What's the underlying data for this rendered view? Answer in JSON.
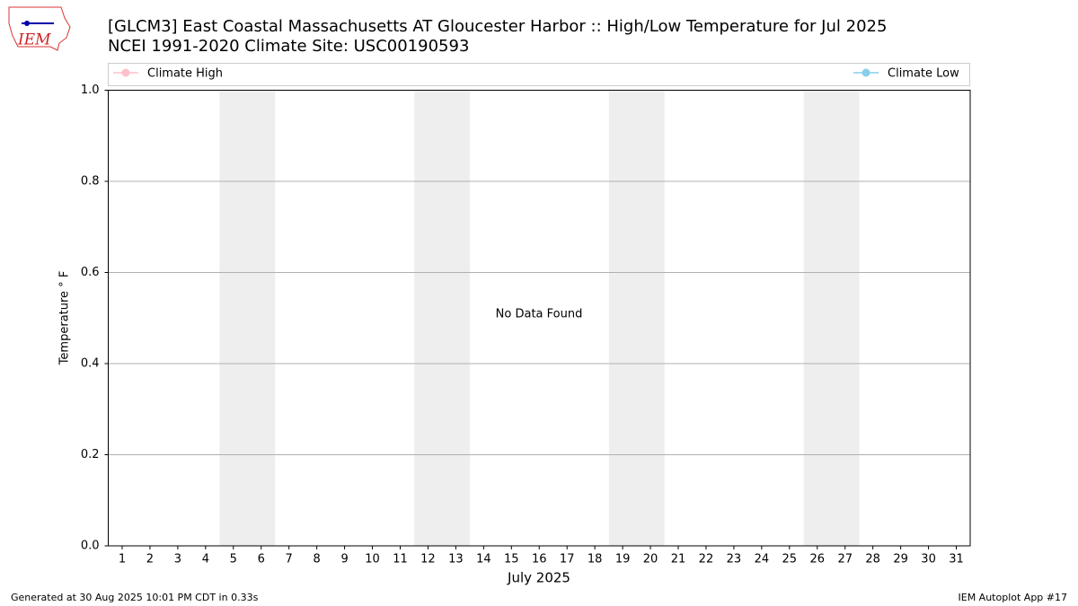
{
  "logo": "IEM",
  "chart_data": {
    "type": "line",
    "title": "[GLCM3] East Coastal Massachusetts  AT Gloucester Harbor :: High/Low Temperature for Jul 2025",
    "subtitle": "NCEI 1991-2020 Climate Site: USC00190593",
    "x_label": "July 2025",
    "y_label": "Temperature $^\\circ$F",
    "annotation": "No Data Found",
    "x": [
      1,
      2,
      3,
      4,
      5,
      6,
      7,
      8,
      9,
      10,
      11,
      12,
      13,
      14,
      15,
      16,
      17,
      18,
      19,
      20,
      21,
      22,
      23,
      24,
      25,
      26,
      27,
      28,
      29,
      30,
      31
    ],
    "xlim": [
      0.5,
      31.5
    ],
    "series": [
      {
        "name": "Climate High",
        "color": "#ffc0cb",
        "values": [
          null,
          null,
          null,
          null,
          null,
          null,
          null,
          null,
          null,
          null,
          null,
          null,
          null,
          null,
          null,
          null,
          null,
          null,
          null,
          null,
          null,
          null,
          null,
          null,
          null,
          null,
          null,
          null,
          null,
          null,
          null
        ]
      },
      {
        "name": "Climate Low",
        "color": "#87ceeb",
        "values": [
          null,
          null,
          null,
          null,
          null,
          null,
          null,
          null,
          null,
          null,
          null,
          null,
          null,
          null,
          null,
          null,
          null,
          null,
          null,
          null,
          null,
          null,
          null,
          null,
          null,
          null,
          null,
          null,
          null,
          null,
          null
        ]
      }
    ],
    "ylim": [
      0,
      1
    ],
    "yticks": [
      {
        "value": 0,
        "label": "0.0"
      },
      0.2,
      0.4,
      0.6,
      0.8,
      {
        "value": 1,
        "label": "1.0"
      }
    ],
    "grid": true,
    "footer_left": "Generated at 30 Aug 2025 10:01 PM CDT in 0.33s",
    "footer_right": "IEM Autoplot App #17"
  }
}
